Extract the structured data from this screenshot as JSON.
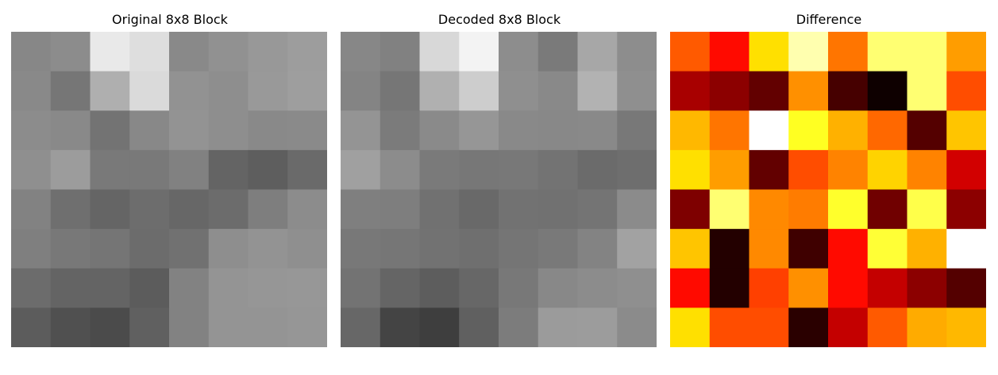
{
  "chart_data": [
    {
      "type": "heatmap",
      "title": "Original 8x8 Block",
      "colormap": "gray",
      "axes": "off",
      "values": [
        [
          135,
          140,
          233,
          222,
          137,
          145,
          152,
          157
        ],
        [
          137,
          118,
          175,
          218,
          146,
          142,
          153,
          158
        ],
        [
          140,
          137,
          115,
          136,
          147,
          142,
          137,
          138
        ],
        [
          143,
          156,
          121,
          121,
          129,
          100,
          94,
          106
        ],
        [
          130,
          111,
          101,
          109,
          103,
          108,
          126,
          140
        ],
        [
          127,
          120,
          117,
          108,
          113,
          142,
          147,
          143
        ],
        [
          108,
          100,
          100,
          92,
          130,
          148,
          150,
          151
        ],
        [
          92,
          80,
          75,
          96,
          130,
          148,
          148,
          150
        ]
      ]
    },
    {
      "type": "heatmap",
      "title": "Decoded 8x8 Block",
      "colormap": "gray",
      "axes": "off",
      "values": [
        [
          135,
          129,
          216,
          243,
          141,
          122,
          167,
          141
        ],
        [
          132,
          118,
          176,
          205,
          143,
          137,
          178,
          143
        ],
        [
          148,
          123,
          138,
          150,
          137,
          136,
          137,
          120
        ],
        [
          160,
          140,
          122,
          119,
          120,
          115,
          107,
          110
        ],
        [
          127,
          126,
          113,
          105,
          114,
          113,
          116,
          139
        ],
        [
          120,
          118,
          114,
          111,
          117,
          121,
          131,
          162
        ],
        [
          115,
          101,
          93,
          103,
          120,
          136,
          140,
          143
        ],
        [
          103,
          68,
          62,
          96,
          124,
          155,
          156,
          139
        ]
      ]
    },
    {
      "type": "heatmap",
      "title": "Difference",
      "colormap": "hot",
      "axes": "off",
      "values": [
        [
          0.5,
          0.38,
          0.7,
          0.92,
          0.54,
          0.86,
          0.86,
          0.6
        ],
        [
          0.24,
          0.2,
          0.14,
          0.58,
          0.1,
          0.02,
          0.86,
          0.48
        ],
        [
          0.64,
          0.54,
          1.0,
          0.78,
          0.63,
          0.52,
          0.12,
          0.66
        ],
        [
          0.7,
          0.6,
          0.14,
          0.48,
          0.56,
          0.68,
          0.56,
          0.3
        ],
        [
          0.18,
          0.86,
          0.57,
          0.55,
          0.79,
          0.16,
          0.82,
          0.2
        ],
        [
          0.66,
          0.05,
          0.57,
          0.09,
          0.38,
          0.8,
          0.63,
          1.0
        ],
        [
          0.38,
          0.05,
          0.46,
          0.58,
          0.38,
          0.28,
          0.2,
          0.12
        ],
        [
          0.7,
          0.48,
          0.48,
          0.06,
          0.28,
          0.5,
          0.62,
          0.64
        ]
      ]
    }
  ]
}
